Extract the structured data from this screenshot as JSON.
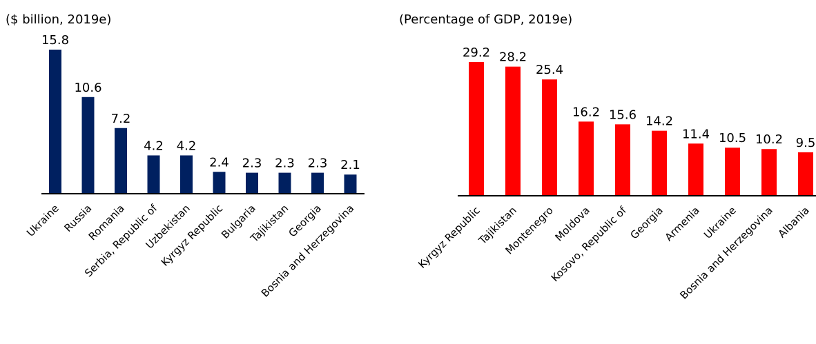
{
  "chart_data": [
    {
      "type": "bar",
      "subtitle": "($ billion, 2019e)",
      "categories": [
        "Ukraine",
        "Russia",
        "Romania",
        "Serbia, Republic of",
        "Uzbekistan",
        "Kyrgyz Republic",
        "Bulgaria",
        "Tajikistan",
        "Georgia",
        "Bosnia and Herzegovina"
      ],
      "values": [
        15.8,
        10.6,
        7.2,
        4.2,
        4.2,
        2.4,
        2.3,
        2.3,
        2.3,
        2.1
      ],
      "color": "#002060"
    },
    {
      "type": "bar",
      "subtitle": "(Percentage of GDP, 2019e)",
      "categories": [
        "Kyrgyz Republic",
        "Tajikistan",
        "Montenegro",
        "Moldova",
        "Kosovo, Republic of",
        "Georgia",
        "Armenia",
        "Ukraine",
        "Bosnia and Herzegovina",
        "Albania"
      ],
      "values": [
        29.2,
        28.2,
        25.4,
        16.2,
        15.6,
        14.2,
        11.4,
        10.5,
        10.2,
        9.5
      ],
      "color": "#ff0000"
    }
  ]
}
